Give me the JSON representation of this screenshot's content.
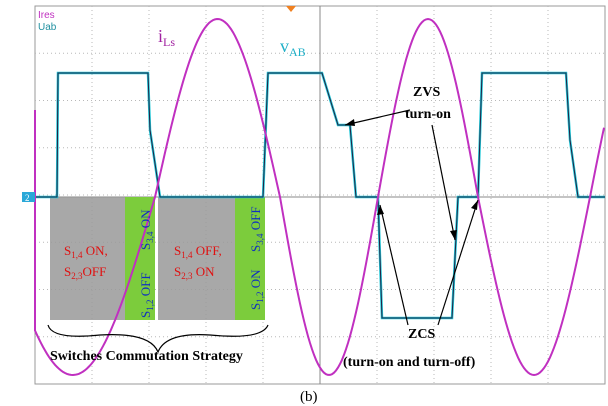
{
  "scope": {
    "channel_labels": [
      "Ires",
      "Uab"
    ],
    "ground_marker": "2"
  },
  "annotations": {
    "current": {
      "main": "i",
      "sub": "Ls"
    },
    "voltage": {
      "main": "v",
      "sub": "AB"
    },
    "zvs": [
      "ZVS",
      "turn-on"
    ],
    "zcs": [
      "ZCS",
      "(turn-on and turn-off)"
    ],
    "strategy": "Switches Commutation Strategy",
    "caption": "(b)"
  },
  "states": {
    "state1": [
      {
        "main": "S",
        "sub": "1,4",
        "rest": " ON,"
      },
      {
        "main": "S",
        "sub": "2,3",
        "rest": "OFF"
      }
    ],
    "state2_on": {
      "main": "S",
      "sub": "3,4",
      "rest": " ON"
    },
    "state2_off": {
      "main": "S",
      "sub": "1,2",
      "rest": " OFF"
    },
    "state3": [
      {
        "main": "S",
        "sub": "1,4",
        "rest": " OFF,"
      },
      {
        "main": "S",
        "sub": "2,3",
        "rest": " ON"
      }
    ],
    "state4_on": {
      "main": "S",
      "sub": "1,2",
      "rest": " ON"
    },
    "state4_off": {
      "main": "S",
      "sub": "3,4",
      "rest": " OFF"
    }
  }
}
